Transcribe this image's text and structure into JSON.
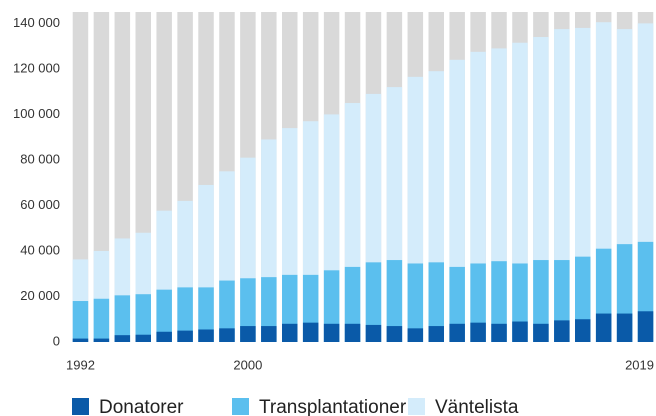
{
  "chart_data": {
    "type": "bar",
    "stacked": false,
    "categories": [
      1992,
      null,
      null,
      null,
      null,
      null,
      null,
      null,
      2000,
      null,
      null,
      null,
      null,
      null,
      null,
      null,
      null,
      null,
      null,
      null,
      null,
      null,
      null,
      null,
      null,
      null,
      null,
      2019
    ],
    "series": [
      {
        "name": "Väntelista",
        "color": "#d4ecfb",
        "values": [
          36300,
          40000,
          45500,
          48000,
          57700,
          62000,
          69000,
          75000,
          81000,
          89000,
          94000,
          97000,
          100000,
          105000,
          109000,
          112000,
          116500,
          119000,
          124000,
          127500,
          129000,
          131500,
          134000,
          137500,
          138000,
          140500,
          137500,
          140000
        ]
      },
      {
        "name": "Transplantationer",
        "color": "#5bbfee",
        "values": [
          18000,
          19000,
          20500,
          21000,
          23000,
          24000,
          24000,
          27000,
          28000,
          28500,
          29500,
          29500,
          31500,
          33000,
          35000,
          36000,
          34500,
          35000,
          33000,
          34500,
          35500,
          34500,
          36000,
          36000,
          37500,
          41000,
          43000,
          44000
        ]
      },
      {
        "name": "Donatorer",
        "color": "#0a5aa8",
        "values": [
          1500,
          1500,
          3000,
          3200,
          4500,
          5000,
          5500,
          6000,
          7000,
          7000,
          8000,
          8500,
          8000,
          8000,
          7500,
          7000,
          6000,
          7000,
          8000,
          8500,
          8000,
          9000,
          8000,
          9500,
          10000,
          12500,
          12500,
          13500
        ]
      }
    ],
    "ylim": [
      0,
      145000
    ],
    "yticks": [
      0,
      {
        "value": 20000,
        "label": "20 000"
      },
      {
        "value": 40000,
        "label": "40 000"
      },
      {
        "value": 60000,
        "label": "60 000"
      },
      {
        "value": 80000,
        "label": "80 000"
      },
      {
        "value": 100000,
        "label": "100 000"
      },
      {
        "value": 120000,
        "label": "120 000"
      },
      {
        "value": 140000,
        "label": "140 000"
      }
    ],
    "background_color": "#d9d9d9"
  }
}
